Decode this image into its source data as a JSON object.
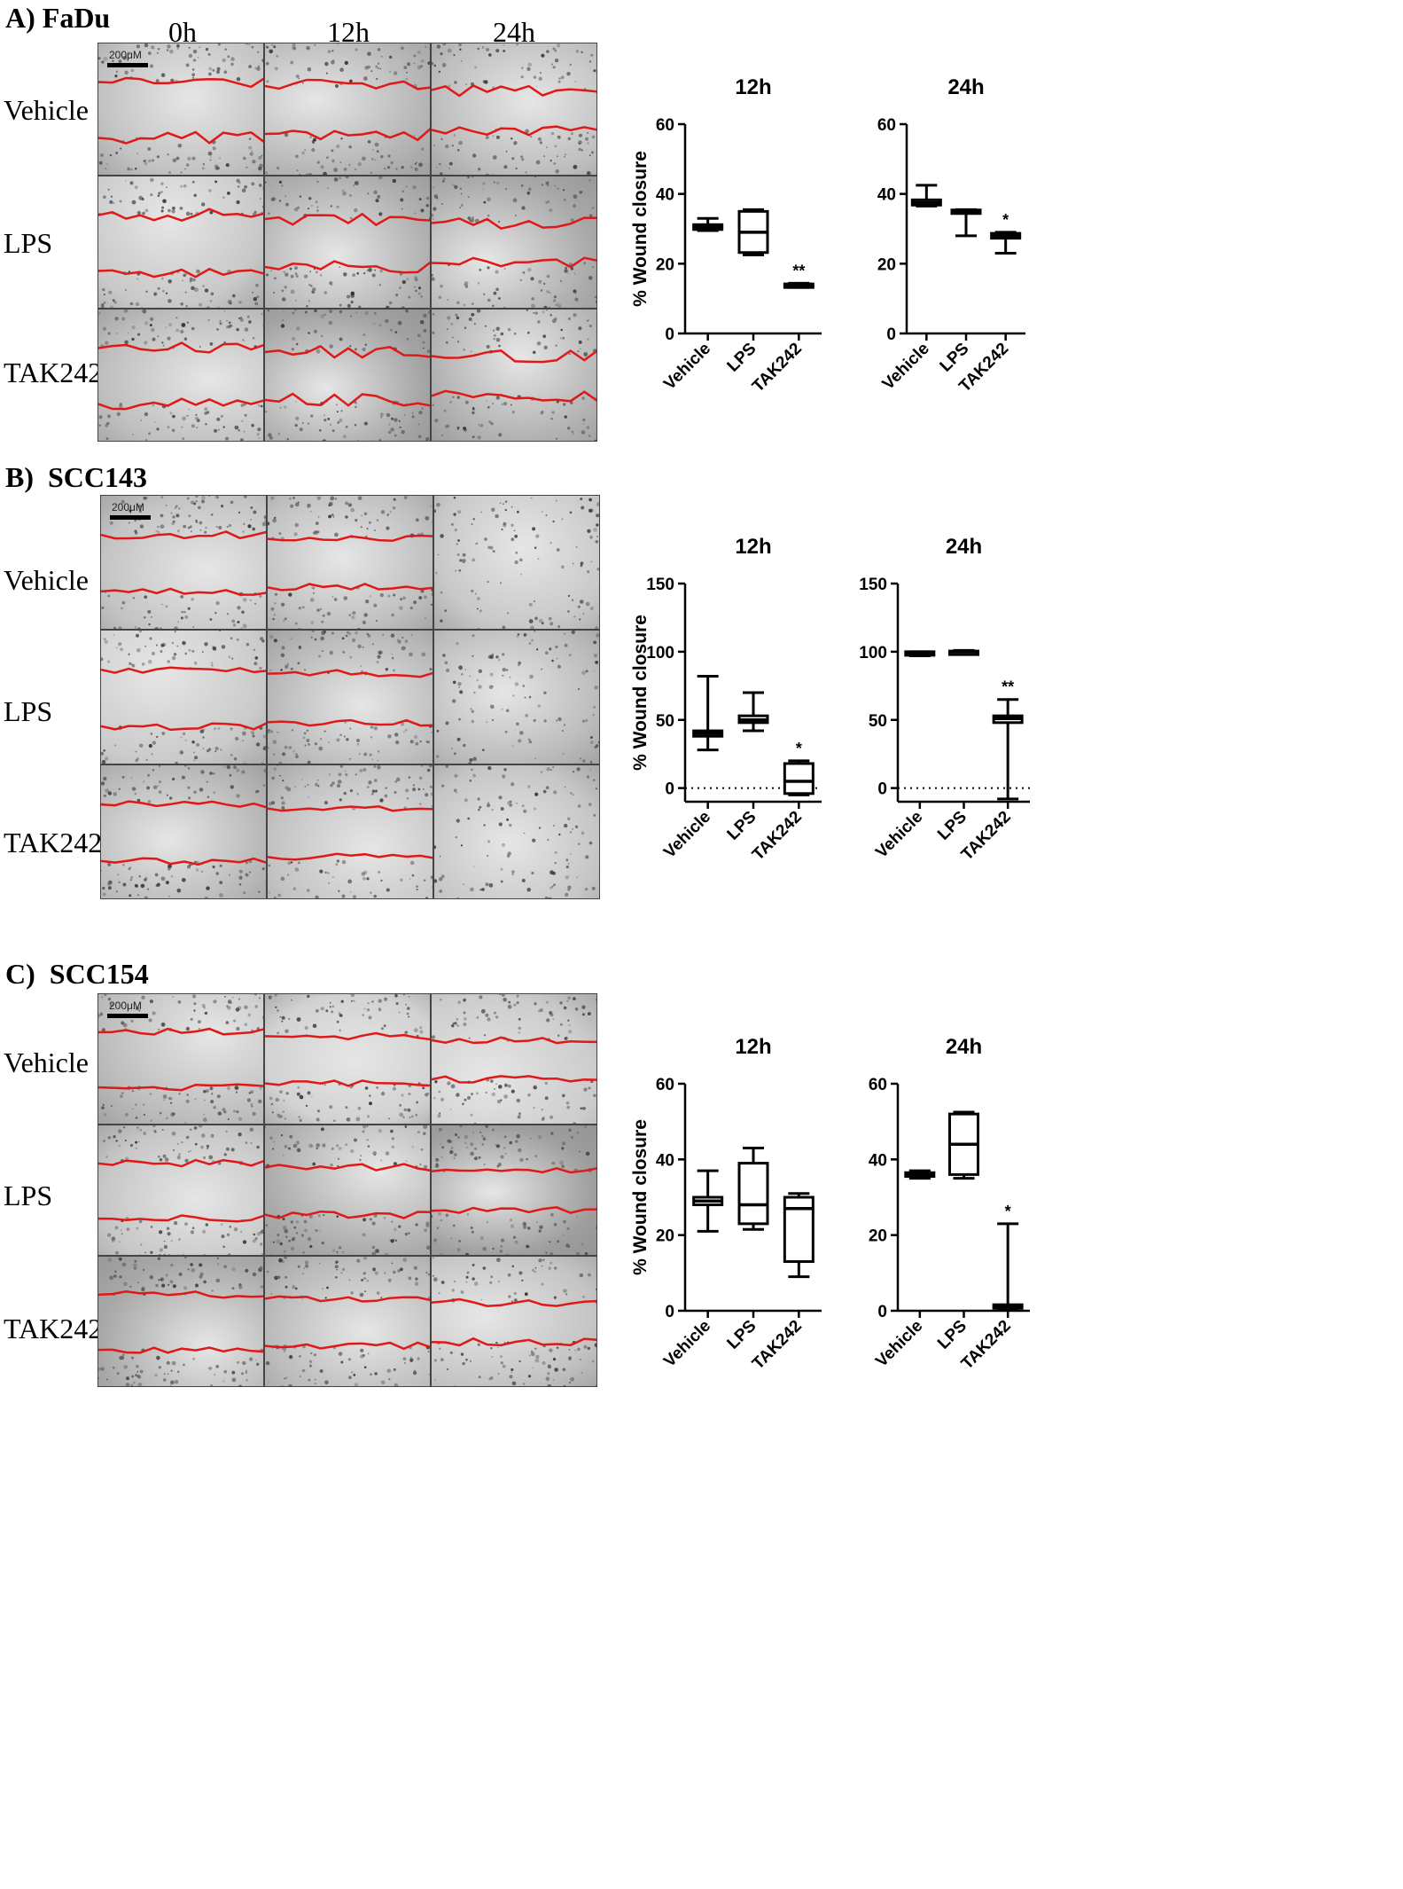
{
  "time_labels": [
    "0h",
    "12h",
    "24h"
  ],
  "row_labels": [
    "Vehicle",
    "LPS",
    "TAK242"
  ],
  "panels": [
    {
      "label": "A)",
      "cell_line": "FaDu",
      "scale_text": "200μM",
      "micrographs": {
        "tones": [
          [
            "#c2c2c2",
            "#b4b4b4",
            "#bdbdbd"
          ],
          [
            "#c8c8c8",
            "#b0b0b0",
            "#a8a8a8"
          ],
          [
            "#bebebe",
            "#a2a2a2",
            "#b2b2b2"
          ]
        ]
      },
      "charts": [
        {
          "title": "12h",
          "ylabel": "% Wound closure",
          "ylim": [
            0,
            60
          ],
          "yticks": [
            0,
            20,
            40,
            60
          ],
          "categories": [
            "Vehicle",
            "LPS",
            "TAK242"
          ],
          "boxes": [
            {
              "min": 29.5,
              "q1": 29.8,
              "median": 30.5,
              "q3": 31.2,
              "max": 33
            },
            {
              "min": 22.5,
              "q1": 23.2,
              "median": 29,
              "q3": 35,
              "max": 35.5
            },
            {
              "min": 13.2,
              "q1": 13.4,
              "median": 13.8,
              "q3": 14.2,
              "max": 14.4
            }
          ],
          "annotations": [
            "",
            "",
            "**"
          ],
          "dotted_zero": false
        },
        {
          "title": "24h",
          "ylabel": "",
          "ylim": [
            0,
            60
          ],
          "yticks": [
            0,
            20,
            40,
            60
          ],
          "categories": [
            "Vehicle",
            "LPS",
            "TAK242"
          ],
          "boxes": [
            {
              "min": 36.5,
              "q1": 36.8,
              "median": 37.5,
              "q3": 38.3,
              "max": 42.5
            },
            {
              "min": 28,
              "q1": 34.6,
              "median": 35,
              "q3": 35.4,
              "max": 35.5
            },
            {
              "min": 23,
              "q1": 27.3,
              "median": 28,
              "q3": 28.7,
              "max": 29
            }
          ],
          "annotations": [
            "",
            "",
            "*"
          ],
          "dotted_zero": false
        }
      ]
    },
    {
      "label": "B)",
      "cell_line": "SCC143",
      "scale_text": "200μM",
      "micrographs": {
        "tones": [
          [
            "#c4c4c4",
            "#c0c0c0",
            "#c8c8c8"
          ],
          [
            "#cacaca",
            "#b8b8b8",
            "#bcbcbc"
          ],
          [
            "#b8b8b8",
            "#c2c2c2",
            "#c6c6c6"
          ]
        ]
      },
      "charts": [
        {
          "title": "12h",
          "ylabel": "% Wound closure",
          "ylim": [
            -10,
            150
          ],
          "yticks": [
            0,
            50,
            100,
            150
          ],
          "categories": [
            "Vehicle",
            "LPS",
            "TAK242"
          ],
          "boxes": [
            {
              "min": 28,
              "q1": 38,
              "median": 40,
              "q3": 42,
              "max": 82
            },
            {
              "min": 42,
              "q1": 48,
              "median": 50,
              "q3": 53,
              "max": 70
            },
            {
              "min": -5,
              "q1": -4,
              "median": 5,
              "q3": 18,
              "max": 20
            }
          ],
          "annotations": [
            "",
            "",
            "*"
          ],
          "dotted_zero": true
        },
        {
          "title": "24h",
          "ylabel": "",
          "ylim": [
            -10,
            150
          ],
          "yticks": [
            0,
            50,
            100,
            150
          ],
          "categories": [
            "Vehicle",
            "LPS",
            "TAK242"
          ],
          "boxes": [
            {
              "min": 97,
              "q1": 98,
              "median": 99,
              "q3": 100,
              "max": 100
            },
            {
              "min": 99,
              "q1": 99.5,
              "median": 100,
              "q3": 100.5,
              "max": 101
            },
            {
              "min": -8,
              "q1": 48,
              "median": 51,
              "q3": 53,
              "max": 65
            }
          ],
          "annotations": [
            "",
            "",
            "**"
          ],
          "dotted_zero": true
        }
      ]
    },
    {
      "label": "C)",
      "cell_line": "SCC154",
      "scale_text": "200μM",
      "micrographs": {
        "tones": [
          [
            "#bcbcbc",
            "#d2d2d2",
            "#cccccc"
          ],
          [
            "#c6c6c6",
            "#acacac",
            "#9e9e9e"
          ],
          [
            "#a8a8a8",
            "#bababa",
            "#c4c4c4"
          ]
        ]
      },
      "charts": [
        {
          "title": "12h",
          "ylabel": "% Wound closure",
          "ylim": [
            0,
            60
          ],
          "yticks": [
            0,
            20,
            40,
            60
          ],
          "categories": [
            "Vehicle",
            "LPS",
            "TAK242"
          ],
          "boxes": [
            {
              "min": 21,
              "q1": 28,
              "median": 29,
              "q3": 30,
              "max": 37
            },
            {
              "min": 21.5,
              "q1": 23,
              "median": 28,
              "q3": 39,
              "max": 43
            },
            {
              "min": 9,
              "q1": 13,
              "median": 27,
              "q3": 30,
              "max": 31
            }
          ],
          "annotations": [
            "",
            "",
            ""
          ],
          "dotted_zero": false
        },
        {
          "title": "24h",
          "ylabel": "",
          "ylim": [
            0,
            60
          ],
          "yticks": [
            0,
            20,
            40,
            60
          ],
          "categories": [
            "Vehicle",
            "LPS",
            "TAK242"
          ],
          "boxes": [
            {
              "min": 35,
              "q1": 35.5,
              "median": 36,
              "q3": 36.5,
              "max": 37
            },
            {
              "min": 35,
              "q1": 36,
              "median": 44,
              "q3": 52,
              "max": 52.5
            },
            {
              "min": 0.5,
              "q1": 0.8,
              "median": 1.2,
              "q3": 1.6,
              "max": 23
            }
          ],
          "annotations": [
            "",
            "",
            "*"
          ],
          "dotted_zero": false
        }
      ]
    }
  ],
  "chart_data": [
    {
      "type": "box",
      "title": "12h",
      "panel": "A) FaDu",
      "ylabel": "% Wound closure",
      "ylim": [
        0,
        60
      ],
      "categories": [
        "Vehicle",
        "LPS",
        "TAK242"
      ],
      "series": [
        {
          "values": [
            [
              29.5,
              29.8,
              30.5,
              31.2,
              33
            ],
            [
              22.5,
              23.2,
              29,
              35,
              35.5
            ],
            [
              13.2,
              13.4,
              13.8,
              14.2,
              14.4
            ]
          ]
        }
      ]
    },
    {
      "type": "box",
      "title": "24h",
      "panel": "A) FaDu",
      "ylim": [
        0,
        60
      ],
      "categories": [
        "Vehicle",
        "LPS",
        "TAK242"
      ],
      "series": [
        {
          "values": [
            [
              36.5,
              36.8,
              37.5,
              38.3,
              42.5
            ],
            [
              28,
              34.6,
              35,
              35.4,
              35.5
            ],
            [
              23,
              27.3,
              28,
              28.7,
              29
            ]
          ]
        }
      ]
    },
    {
      "type": "box",
      "title": "12h",
      "panel": "B) SCC143",
      "ylabel": "% Wound closure",
      "ylim": [
        -10,
        150
      ],
      "categories": [
        "Vehicle",
        "LPS",
        "TAK242"
      ],
      "series": [
        {
          "values": [
            [
              28,
              38,
              40,
              42,
              82
            ],
            [
              42,
              48,
              50,
              53,
              70
            ],
            [
              -5,
              -4,
              5,
              18,
              20
            ]
          ]
        }
      ]
    },
    {
      "type": "box",
      "title": "24h",
      "panel": "B) SCC143",
      "ylim": [
        -10,
        150
      ],
      "categories": [
        "Vehicle",
        "LPS",
        "TAK242"
      ],
      "series": [
        {
          "values": [
            [
              97,
              98,
              99,
              100,
              100
            ],
            [
              99,
              99.5,
              100,
              100.5,
              101
            ],
            [
              -8,
              48,
              51,
              53,
              65
            ]
          ]
        }
      ]
    },
    {
      "type": "box",
      "title": "12h",
      "panel": "C) SCC154",
      "ylabel": "% Wound closure",
      "ylim": [
        0,
        60
      ],
      "categories": [
        "Vehicle",
        "LPS",
        "TAK242"
      ],
      "series": [
        {
          "values": [
            [
              21,
              28,
              29,
              30,
              37
            ],
            [
              21.5,
              23,
              28,
              39,
              43
            ],
            [
              9,
              13,
              27,
              30,
              31
            ]
          ]
        }
      ]
    },
    {
      "type": "box",
      "title": "24h",
      "panel": "C) SCC154",
      "ylim": [
        0,
        60
      ],
      "categories": [
        "Vehicle",
        "LPS",
        "TAK242"
      ],
      "series": [
        {
          "values": [
            [
              35,
              35.5,
              36,
              36.5,
              37
            ],
            [
              35,
              36,
              44,
              52,
              52.5
            ],
            [
              0.5,
              0.8,
              1.2,
              1.6,
              23
            ]
          ]
        }
      ]
    }
  ]
}
